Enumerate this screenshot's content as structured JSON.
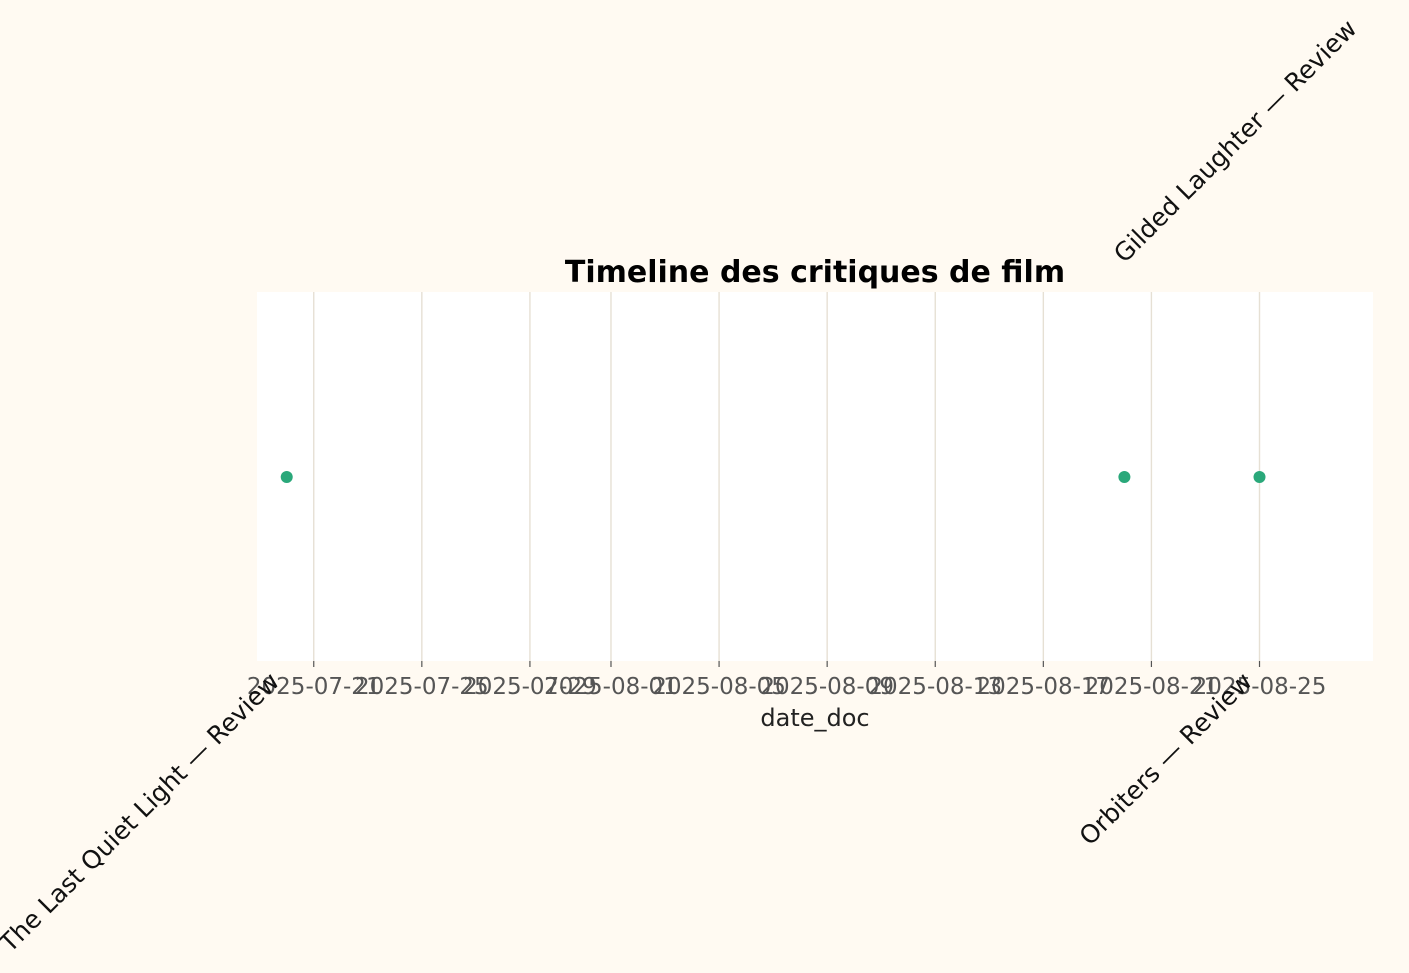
{
  "chart_data": {
    "type": "scatter",
    "title": "Timeline des critiques de film",
    "xlabel": "date_doc",
    "ylabel": "",
    "xlim": [
      "2025-07-18.9",
      "2025-08-29.2"
    ],
    "x_ticks": [
      "2025-07-21",
      "2025-07-25",
      "2025-07-29",
      "2025-08-01",
      "2025-08-05",
      "2025-08-09",
      "2025-08-13",
      "2025-08-17",
      "2025-08-21",
      "2025-08-25"
    ],
    "grid": true,
    "legend": "none",
    "points": [
      {
        "date": "2025-07-20",
        "label": "The Last Quiet Light — Review",
        "label_side": "below"
      },
      {
        "date": "2025-08-20",
        "label": "Gilded Laughter — Review",
        "label_side": "above"
      },
      {
        "date": "2025-08-25",
        "label": "Orbiters — Review",
        "label_side": "below"
      }
    ]
  },
  "colors": {
    "background": "#fffaf2",
    "plot_area": "#ffffff",
    "grid": "#e6e0d4",
    "point": "#2aa87a"
  }
}
